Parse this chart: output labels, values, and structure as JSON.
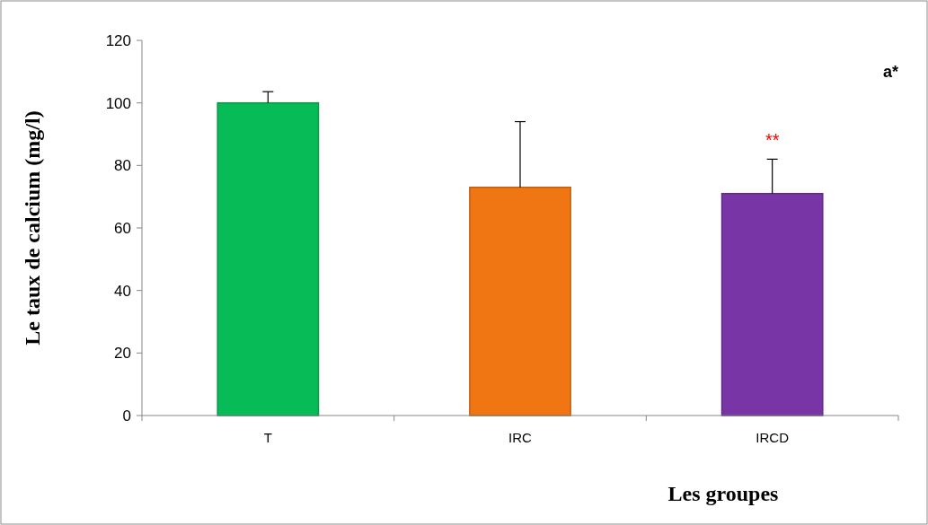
{
  "chart_data": {
    "type": "bar",
    "categories": [
      "T",
      "IRC",
      "IRCD"
    ],
    "values": [
      100,
      73,
      71
    ],
    "colors": [
      "#07bb57",
      "#f07613",
      "#7835a6"
    ],
    "errors": [
      [
        100,
        103.6
      ],
      [
        73,
        94
      ],
      [
        71,
        82
      ]
    ],
    "ylim": [
      0,
      120
    ],
    "yticks": [
      0,
      20,
      40,
      60,
      80,
      100,
      120
    ],
    "ylabel": "Le taux de calcium (mg/l)",
    "xlabel": "Les groupes",
    "annotations": [
      "a*",
      "**"
    ]
  }
}
